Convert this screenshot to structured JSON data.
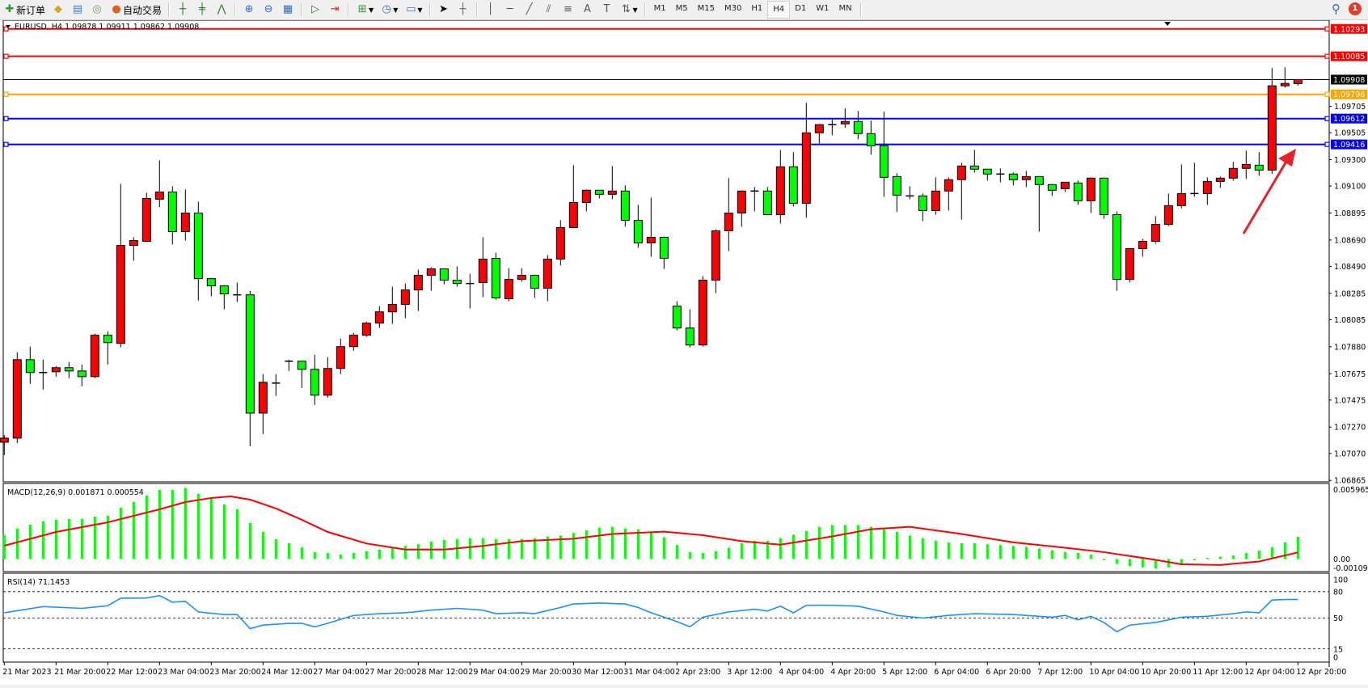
{
  "toolbar": {
    "new_order_label": "新订单",
    "auto_trading_label": "自动交易",
    "timeframes": [
      "M1",
      "M5",
      "M15",
      "M30",
      "H1",
      "H4",
      "D1",
      "W1",
      "MN"
    ],
    "active_timeframe": "H4",
    "notification_count": "1"
  },
  "chart": {
    "header": "EURUSD, H4  1.09878 1.09911 1.09862 1.09908",
    "colors": {
      "bull": "#ff0000",
      "bear": "#00ff00",
      "grid": "#000000",
      "rsi": "#1e90ff",
      "macd_hist": "#00ff00",
      "macd_signal": "#ff0000",
      "annotation": "#e8202a"
    }
  },
  "chart_data": [
    {
      "type": "candlestick",
      "symbol": "EURUSD",
      "timeframe": "H4",
      "ylim": [
        1.06854,
        1.10359
      ],
      "ohlc": [
        [
          1.07155,
          1.0721,
          1.07057,
          1.07186
        ],
        [
          1.07186,
          1.07838,
          1.07149,
          1.07782
        ],
        [
          1.07782,
          1.07881,
          1.07598,
          1.07684
        ],
        [
          1.07684,
          1.07782,
          1.07555,
          1.07684
        ],
        [
          1.0769,
          1.07733,
          1.07653,
          1.07721
        ],
        [
          1.07721,
          1.07764,
          1.07641,
          1.07696
        ],
        [
          1.07696,
          1.07745,
          1.07579,
          1.07653
        ],
        [
          1.07653,
          1.07979,
          1.07641,
          1.07967
        ],
        [
          1.07967,
          1.07998,
          1.07745,
          1.07911
        ],
        [
          1.07905,
          1.09117,
          1.07875,
          1.08649
        ],
        [
          1.08649,
          1.08711,
          1.08533,
          1.08686
        ],
        [
          1.0868,
          1.09049,
          1.08674,
          1.09006
        ],
        [
          1.09,
          1.09295,
          1.08939,
          1.09055
        ],
        [
          1.09055,
          1.09098,
          1.08656,
          1.08754
        ],
        [
          1.08754,
          1.09074,
          1.08686,
          1.08895
        ],
        [
          1.08895,
          1.08982,
          1.08231,
          1.08397
        ],
        [
          1.08397,
          1.08403,
          1.08262,
          1.08342
        ],
        [
          1.08342,
          1.08348,
          1.08164,
          1.08281
        ],
        [
          1.08274,
          1.08367,
          1.08219,
          1.08274
        ],
        [
          1.08274,
          1.08305,
          1.07124,
          1.07376
        ],
        [
          1.07376,
          1.07672,
          1.07217,
          1.0761
        ],
        [
          1.07604,
          1.07672,
          1.07506,
          1.07604
        ],
        [
          1.0777,
          1.07782,
          1.07696,
          1.0777
        ],
        [
          1.0777,
          1.0777,
          1.07567,
          1.07708
        ],
        [
          1.07708,
          1.07819,
          1.07438,
          1.07512
        ],
        [
          1.07512,
          1.07801,
          1.07493,
          1.07715
        ],
        [
          1.07715,
          1.07942,
          1.07672,
          1.07881
        ],
        [
          1.07881,
          1.07985,
          1.0785,
          1.07967
        ],
        [
          1.07967,
          1.08071,
          1.07955,
          1.08059
        ],
        [
          1.08059,
          1.08188,
          1.08022,
          1.08145
        ],
        [
          1.08145,
          1.08336,
          1.08053,
          1.08201
        ],
        [
          1.08201,
          1.0836,
          1.08096,
          1.08311
        ],
        [
          1.08311,
          1.08465,
          1.08151,
          1.08422
        ],
        [
          1.08422,
          1.08483,
          1.08305,
          1.08471
        ],
        [
          1.08471,
          1.08471,
          1.08354,
          1.08385
        ],
        [
          1.08385,
          1.0849,
          1.08336,
          1.0836
        ],
        [
          1.0836,
          1.08434,
          1.0817,
          1.0836
        ],
        [
          1.08367,
          1.08711,
          1.08256,
          1.08545
        ],
        [
          1.08551,
          1.08594,
          1.08237,
          1.0825
        ],
        [
          1.08244,
          1.08477,
          1.08225,
          1.08391
        ],
        [
          1.08391,
          1.08477,
          1.08373,
          1.08422
        ],
        [
          1.08422,
          1.08428,
          1.0825,
          1.08324
        ],
        [
          1.08324,
          1.08576,
          1.08225,
          1.08545
        ],
        [
          1.08545,
          1.0884,
          1.08496,
          1.08785
        ],
        [
          1.08785,
          1.09258,
          1.08785,
          1.08975
        ],
        [
          1.08975,
          1.09074,
          1.08908,
          1.09068
        ],
        [
          1.09068,
          1.09068,
          1.09006,
          1.09037
        ],
        [
          1.09037,
          1.09252,
          1.09,
          1.09062
        ],
        [
          1.09062,
          1.09105,
          1.08791,
          1.0884
        ],
        [
          1.0884,
          1.08957,
          1.08631,
          1.08668
        ],
        [
          1.08668,
          1.09012,
          1.08563,
          1.08711
        ],
        [
          1.08711,
          1.08717,
          1.08471,
          1.08551
        ],
        [
          1.08188,
          1.08225,
          1.08004,
          1.08022
        ],
        [
          1.08022,
          1.08164,
          1.07875,
          1.07893
        ],
        [
          1.07893,
          1.08416,
          1.07881,
          1.08385
        ],
        [
          1.08385,
          1.08772,
          1.08287,
          1.0876
        ],
        [
          1.0876,
          1.0916,
          1.08606,
          1.08895
        ],
        [
          1.08895,
          1.09068,
          1.08791,
          1.09062
        ],
        [
          1.09062,
          1.09092,
          1.08908,
          1.09062
        ],
        [
          1.09062,
          1.09092,
          1.08883,
          1.08883
        ],
        [
          1.08883,
          1.09375,
          1.08815,
          1.09246
        ],
        [
          1.09246,
          1.09357,
          1.08945,
          1.08969
        ],
        [
          1.08969,
          1.09732,
          1.08859,
          1.09504
        ],
        [
          1.09504,
          1.09572,
          1.09424,
          1.09566
        ],
        [
          1.09566,
          1.09603,
          1.09486,
          1.09566
        ],
        [
          1.09572,
          1.09689,
          1.09541,
          1.0959
        ],
        [
          1.0959,
          1.0967,
          1.09455,
          1.09498
        ],
        [
          1.09498,
          1.09597,
          1.09338,
          1.09406
        ],
        [
          1.09406,
          1.09664,
          1.09018,
          1.09166
        ],
        [
          1.09172,
          1.09197,
          1.08902,
          1.09031
        ],
        [
          1.09025,
          1.09098,
          1.09,
          1.09025
        ],
        [
          1.09025,
          1.09043,
          1.08834,
          1.08914
        ],
        [
          1.08914,
          1.09166,
          1.08883,
          1.09062
        ],
        [
          1.09062,
          1.09166,
          1.08914,
          1.09148
        ],
        [
          1.09148,
          1.09277,
          1.08846,
          1.09252
        ],
        [
          1.09252,
          1.09375,
          1.09203,
          1.09228
        ],
        [
          1.09228,
          1.09228,
          1.09141,
          1.09191
        ],
        [
          1.09191,
          1.09234,
          1.09129,
          1.09191
        ],
        [
          1.09191,
          1.09203,
          1.09105,
          1.09148
        ],
        [
          1.09148,
          1.09215,
          1.09092,
          1.09172
        ],
        [
          1.09172,
          1.09172,
          1.08754,
          1.09111
        ],
        [
          1.09111,
          1.09117,
          1.09025,
          1.09068
        ],
        [
          1.0908,
          1.09129,
          1.09055,
          1.09129
        ],
        [
          1.09123,
          1.09141,
          1.08957,
          1.08988
        ],
        [
          1.08988,
          1.09166,
          1.08895,
          1.0916
        ],
        [
          1.0916,
          1.09166,
          1.08852,
          1.08883
        ],
        [
          1.08883,
          1.08908,
          1.08305,
          1.08391
        ],
        [
          1.08391,
          1.08625,
          1.08367,
          1.08625
        ],
        [
          1.08625,
          1.08699,
          1.08563,
          1.0868
        ],
        [
          1.0868,
          1.08871,
          1.08662,
          1.08809
        ],
        [
          1.08809,
          1.09043,
          1.08797,
          1.08951
        ],
        [
          1.08951,
          1.09264,
          1.08932,
          1.09043
        ],
        [
          1.09043,
          1.09277,
          1.09018,
          1.09043
        ],
        [
          1.09043,
          1.09166,
          1.08957,
          1.09135
        ],
        [
          1.09135,
          1.09172,
          1.09086,
          1.0916
        ],
        [
          1.0916,
          1.09283,
          1.09141,
          1.09234
        ],
        [
          1.09234,
          1.09369,
          1.09154,
          1.09264
        ],
        [
          1.09258,
          1.09357,
          1.09178,
          1.09221
        ],
        [
          1.09221,
          1.09996,
          1.09191,
          1.09861
        ],
        [
          1.09861,
          1.10002,
          1.09849,
          1.09879
        ],
        [
          1.09878,
          1.09911,
          1.09862,
          1.09908
        ]
      ],
      "bid": 1.09908,
      "hlines": [
        {
          "price": 1.10293,
          "color": "#ff0000"
        },
        {
          "price": 1.10085,
          "color": "#ff0000"
        },
        {
          "price": 1.09796,
          "color": "#ffa500"
        },
        {
          "price": 1.09612,
          "color": "#0000ff"
        },
        {
          "price": 1.09416,
          "color": "#0000ff"
        }
      ],
      "price_axis_labels": [
        "1.09705",
        "1.09505",
        "1.09300",
        "1.09100",
        "1.08895",
        "1.08690",
        "1.08490",
        "1.08285",
        "1.08085",
        "1.07880",
        "1.07675",
        "1.07475",
        "1.07270",
        "1.07070",
        "1.06865"
      ],
      "time_label_every_bars": 4,
      "time_labels": [
        "21 Mar 2023",
        "21 Mar 20:00",
        "22 Mar 12:00",
        "23 Mar 04:00",
        "23 Mar 20:00",
        "24 Mar 12:00",
        "27 Mar 04:00",
        "27 Mar 20:00",
        "28 Mar 12:00",
        "29 Mar 04:00",
        "29 Mar 20:00",
        "30 Mar 12:00",
        "31 Mar 04:00",
        "2 Apr 23:00",
        "3 Apr 12:00",
        "4 Apr 04:00",
        "4 Apr 20:00",
        "5 Apr 12:00",
        "6 Apr 04:00",
        "6 Apr 20:00",
        "7 Apr 12:00",
        "10 Apr 04:00",
        "10 Apr 20:00",
        "11 Apr 12:00",
        "12 Apr 04:00",
        "12 Apr 20:00"
      ]
    },
    {
      "type": "bar",
      "title": "MACD(12,26,9) 0.001871 0.000554",
      "axis_labels": [
        "0.005965",
        "0.00",
        "-0.001096"
      ],
      "ylim": [
        -0.001096,
        0.005965
      ],
      "histogram": [
        0.00202,
        0.00256,
        0.00288,
        0.00315,
        0.00329,
        0.00336,
        0.00336,
        0.00356,
        0.00363,
        0.00431,
        0.00478,
        0.00532,
        0.0058,
        0.0058,
        0.005965,
        0.00546,
        0.00505,
        0.00458,
        0.00417,
        0.00302,
        0.00227,
        0.00166,
        0.00132,
        0.00098,
        0.00058,
        0.00051,
        0.00037,
        0.00051,
        0.00066,
        0.0008,
        0.00095,
        0.0011,
        0.00124,
        0.00146,
        0.00161,
        0.00168,
        0.00175,
        0.00175,
        0.00168,
        0.00168,
        0.00168,
        0.00175,
        0.0019,
        0.00197,
        0.00219,
        0.00241,
        0.00263,
        0.0027,
        0.00256,
        0.00249,
        0.00227,
        0.00183,
        0.00117,
        0.00058,
        0.00051,
        0.00066,
        0.00095,
        0.00132,
        0.00154,
        0.00154,
        0.00175,
        0.00205,
        0.00234,
        0.0027,
        0.00285,
        0.00285,
        0.00285,
        0.0027,
        0.00249,
        0.00227,
        0.00197,
        0.00175,
        0.00154,
        0.00139,
        0.00132,
        0.00132,
        0.00124,
        0.00117,
        0.0011,
        0.00102,
        0.00088,
        0.00073,
        0.00058,
        0.00051,
        0.00037,
        -0.0001,
        -0.0004,
        -0.0006,
        -0.0007,
        -0.0008,
        -0.0007,
        -0.0004,
        -0.0001,
        0.0001,
        0.0002,
        0.0003,
        0.0005,
        0.0007,
        0.001,
        0.0014,
        0.001871
      ],
      "signal": [
        [
          0,
          0.00112
        ],
        [
          4,
          0.00227
        ],
        [
          8,
          0.00308
        ],
        [
          12,
          0.00417
        ],
        [
          14,
          0.00478
        ],
        [
          16,
          0.00512
        ],
        [
          17.5,
          0.00525
        ],
        [
          19,
          0.00498
        ],
        [
          21,
          0.00424
        ],
        [
          23,
          0.00329
        ],
        [
          25,
          0.00227
        ],
        [
          28,
          0.0013
        ],
        [
          31,
          0.0008
        ],
        [
          34,
          0.0008
        ],
        [
          37,
          0.0011
        ],
        [
          40,
          0.0015
        ],
        [
          44,
          0.0017
        ],
        [
          47,
          0.0021
        ],
        [
          51,
          0.0023
        ],
        [
          54,
          0.002
        ],
        [
          57,
          0.0015
        ],
        [
          60,
          0.0012
        ],
        [
          64,
          0.0019
        ],
        [
          67,
          0.0025
        ],
        [
          70,
          0.0027
        ],
        [
          74,
          0.0021
        ],
        [
          78,
          0.0014
        ],
        [
          82,
          0.00095
        ],
        [
          85,
          0.00058
        ],
        [
          89,
          -7e-05
        ],
        [
          91,
          -0.00044
        ],
        [
          94,
          -0.0005
        ],
        [
          97,
          -0.0002
        ],
        [
          100,
          0.000554
        ]
      ]
    },
    {
      "type": "line",
      "title": "RSI(14) 71.1453",
      "axis_labels": [
        "100",
        "80",
        "50",
        "15",
        "0"
      ],
      "levels": [
        80,
        50,
        15
      ],
      "ylim": [
        0,
        100
      ],
      "values": [
        [
          0,
          56
        ],
        [
          3,
          63
        ],
        [
          6,
          61
        ],
        [
          8,
          64
        ],
        [
          9,
          72.5
        ],
        [
          11,
          72.8
        ],
        [
          12,
          75.5
        ],
        [
          13,
          68
        ],
        [
          14,
          69
        ],
        [
          15,
          57
        ],
        [
          17,
          54
        ],
        [
          18,
          54
        ],
        [
          19,
          38
        ],
        [
          20,
          42
        ],
        [
          22,
          44
        ],
        [
          23,
          44
        ],
        [
          24,
          40
        ],
        [
          25,
          44
        ],
        [
          27,
          53
        ],
        [
          29,
          55
        ],
        [
          31,
          56
        ],
        [
          33,
          59
        ],
        [
          35,
          61
        ],
        [
          37,
          59
        ],
        [
          38,
          55
        ],
        [
          40,
          56
        ],
        [
          41,
          55
        ],
        [
          43,
          62
        ],
        [
          44,
          66
        ],
        [
          46,
          67
        ],
        [
          48,
          66
        ],
        [
          49,
          62
        ],
        [
          50,
          56
        ],
        [
          52,
          46
        ],
        [
          53,
          40
        ],
        [
          54,
          51
        ],
        [
          56,
          57
        ],
        [
          58,
          60
        ],
        [
          59,
          58
        ],
        [
          60,
          63.5
        ],
        [
          61,
          56
        ],
        [
          62,
          64.5
        ],
        [
          64,
          64.5
        ],
        [
          66,
          63.5
        ],
        [
          68,
          57
        ],
        [
          69,
          53
        ],
        [
          71,
          50
        ],
        [
          73,
          53
        ],
        [
          75,
          55
        ],
        [
          78,
          54
        ],
        [
          81,
          51
        ],
        [
          82,
          53
        ],
        [
          83,
          48
        ],
        [
          84,
          52
        ],
        [
          85,
          45
        ],
        [
          86,
          34.5
        ],
        [
          87,
          42
        ],
        [
          89,
          45
        ],
        [
          91,
          51
        ],
        [
          93,
          52
        ],
        [
          95,
          55
        ],
        [
          96,
          57
        ],
        [
          97,
          56
        ],
        [
          98,
          70.5
        ],
        [
          99,
          71
        ],
        [
          100,
          71.1453
        ]
      ]
    }
  ]
}
